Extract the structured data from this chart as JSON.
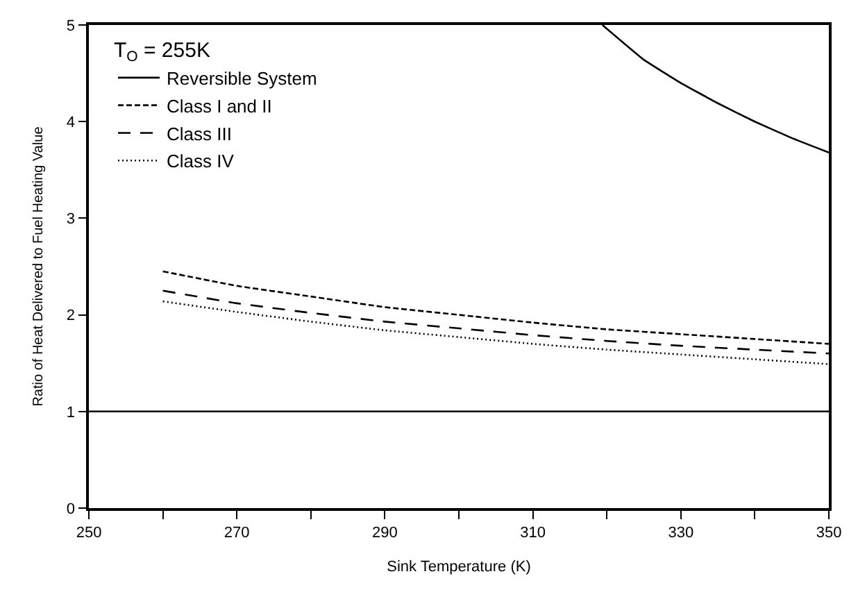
{
  "chart_data": {
    "type": "line",
    "xlabel": "Sink Temperature (K)",
    "ylabel": "Ratio of Heat Delivered to Fuel Heating Value",
    "legend_title": "T$_{O}$ = 255K",
    "legend": "top left",
    "xlim": [
      250,
      350
    ],
    "ylim": [
      0,
      5
    ],
    "xticks": [
      250,
      {
        "value": 260,
        "label": null
      },
      270,
      {
        "value": 280,
        "label": null
      },
      290,
      {
        "value": 300,
        "label": null
      },
      310,
      {
        "value": 320,
        "label": null
      },
      330,
      {
        "value": 340,
        "label": null
      },
      350
    ],
    "yticks": [
      0,
      1,
      2,
      3,
      4,
      5
    ],
    "ref_lines": [
      {
        "axis": "y",
        "value": 1,
        "color": "#000000",
        "line_style": "solid"
      }
    ],
    "series": [
      {
        "name": "Reversible System",
        "color": "#000000",
        "line_style": "solid",
        "x": [
          319.4,
          325,
          330,
          335,
          340,
          345,
          350
        ],
        "values": [
          5.0,
          4.64,
          4.4,
          4.19,
          4.0,
          3.83,
          3.68
        ]
      },
      {
        "name": "Class I and II",
        "color": "#000000",
        "line_style": "dashed",
        "x": [
          260,
          270,
          280,
          290,
          300,
          310,
          320,
          330,
          340,
          350
        ],
        "values": [
          2.45,
          2.3,
          2.19,
          2.08,
          2.0,
          1.92,
          1.85,
          1.8,
          1.75,
          1.7
        ]
      },
      {
        "name": "Class III",
        "color": "#000000",
        "line_style": "longdash",
        "x": [
          260,
          270,
          280,
          290,
          300,
          310,
          320,
          330,
          340,
          350
        ],
        "values": [
          2.25,
          2.12,
          2.02,
          1.93,
          1.86,
          1.79,
          1.73,
          1.68,
          1.64,
          1.6
        ]
      },
      {
        "name": "Class IV",
        "color": "#000000",
        "line_style": "dotted",
        "x": [
          260,
          270,
          280,
          290,
          300,
          310,
          320,
          330,
          340,
          350
        ],
        "values": [
          2.14,
          2.03,
          1.93,
          1.84,
          1.77,
          1.7,
          1.64,
          1.59,
          1.54,
          1.49
        ]
      }
    ]
  }
}
